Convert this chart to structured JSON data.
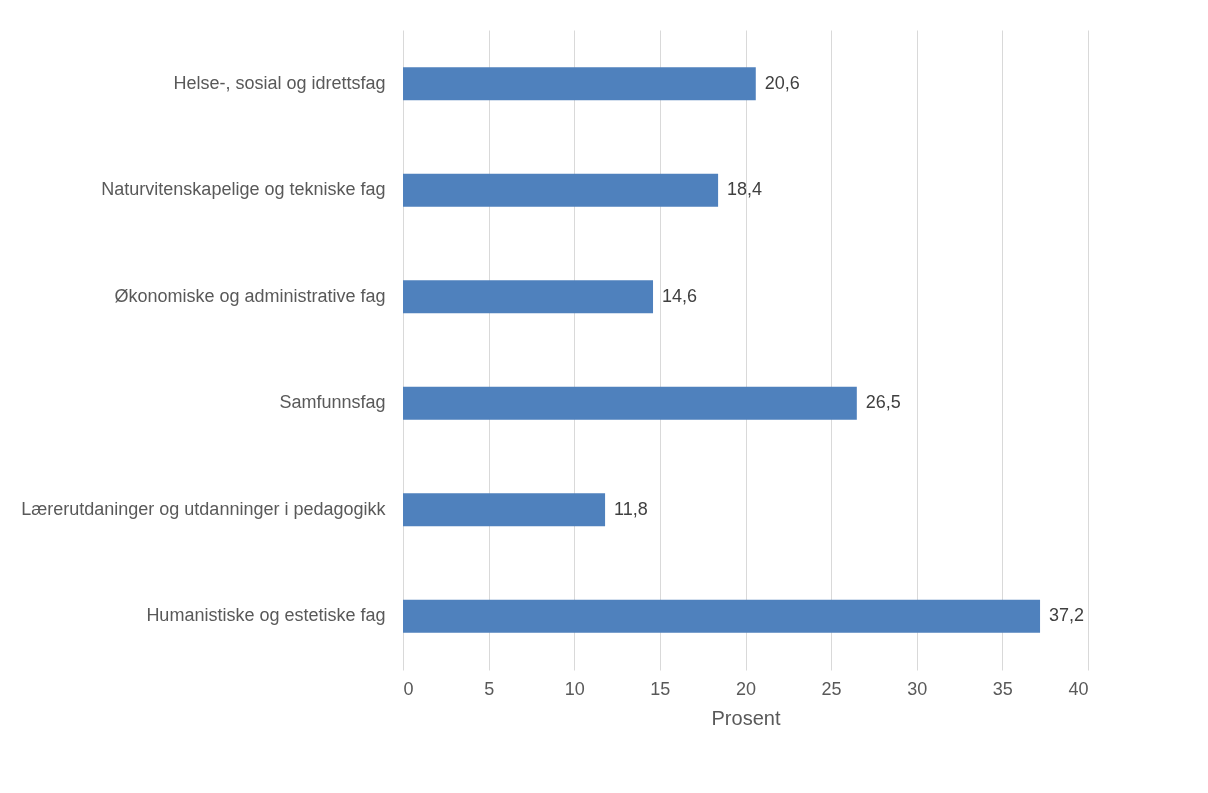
{
  "chart_data": {
    "type": "bar",
    "orientation": "horizontal",
    "xlabel": "Prosent",
    "categories": [
      "Helse-, sosial og idrettsfag",
      "Naturvitenskapelige og tekniske fag",
      "Økonomiske og administrative fag",
      "Samfunnsfag",
      "Lærerutdaninger og utdanninger i pedagogikk",
      "Humanistiske og estetiske fag"
    ],
    "values": [
      20.6,
      18.4,
      14.6,
      26.5,
      11.8,
      37.2
    ],
    "value_labels": [
      "20,6",
      "18,4",
      "14,6",
      "26,5",
      "11,8",
      "37,2"
    ],
    "color": "#4f81bd",
    "xlim": [
      0,
      40
    ],
    "xticks": [
      0,
      5,
      10,
      15,
      20,
      25,
      30,
      35,
      40
    ],
    "grid": "x"
  }
}
